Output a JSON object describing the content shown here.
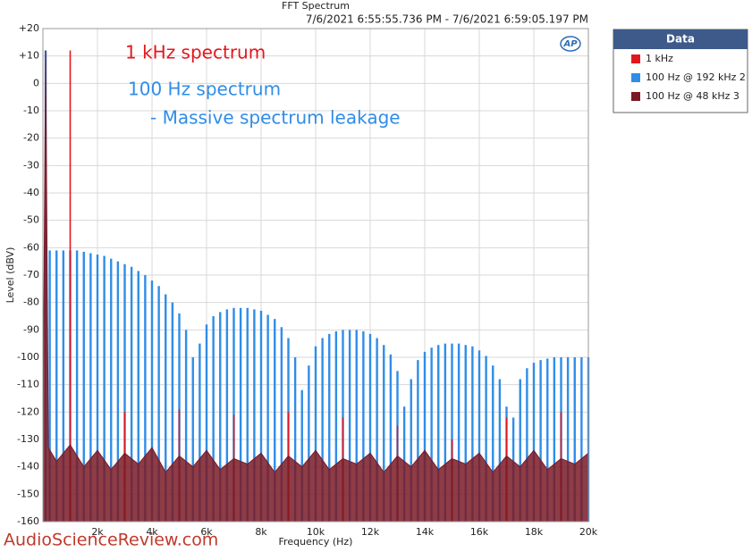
{
  "chart_data": {
    "type": "spectrum",
    "title": "FFT Spectrum",
    "subtitle": "7/6/2021 6:55:55.736 PM - 7/6/2021 6:59:05.197 PM",
    "logo": "AP",
    "x_label": "Frequency (Hz)",
    "y_label": "Level (dBV)",
    "annotations": [
      {
        "text": "1 kHz spectrum",
        "color": "#e3161d"
      },
      {
        "text": "100 Hz spectrum",
        "color": "#2f8de8"
      },
      {
        "text": "- Massive spectrum leakage",
        "color": "#2f8de8"
      }
    ],
    "watermark": "AudioScienceReview.com",
    "legend_title": "Data",
    "legend": "right",
    "grid": true,
    "xlim": [
      0,
      20000
    ],
    "xticks": [
      {
        "value": 2000,
        "label": "2k"
      },
      {
        "value": 4000,
        "label": "4k"
      },
      {
        "value": 6000,
        "label": "6k"
      },
      {
        "value": 8000,
        "label": "8k"
      },
      {
        "value": 10000,
        "label": "10k"
      },
      {
        "value": 12000,
        "label": "12k"
      },
      {
        "value": 14000,
        "label": "14k"
      },
      {
        "value": 16000,
        "label": "16k"
      },
      {
        "value": 18000,
        "label": "18k"
      },
      {
        "value": 20000,
        "label": "20k"
      }
    ],
    "ylim": [
      -160,
      20
    ],
    "yticks": [
      {
        "value": 20,
        "label": "+20"
      },
      {
        "value": 10,
        "label": "+10"
      },
      0,
      -10,
      -20,
      -30,
      -40,
      -50,
      -60,
      -70,
      -80,
      -90,
      -100,
      -110,
      -120,
      -130,
      -140,
      -150,
      -160
    ],
    "series": [
      {
        "name": "100 Hz @ 192 kHz 2",
        "color": "#2f8de8",
        "style": "stem",
        "x": [
          100,
          250,
          500,
          750,
          1000,
          1250,
          1500,
          1750,
          2000,
          2250,
          2500,
          2750,
          3000,
          3250,
          3500,
          3750,
          4000,
          4250,
          4500,
          4750,
          5000,
          5250,
          5500,
          5750,
          6000,
          6250,
          6500,
          6750,
          7000,
          7250,
          7500,
          7750,
          8000,
          8250,
          8500,
          8750,
          9000,
          9250,
          9500,
          9750,
          10000,
          10250,
          10500,
          10750,
          11000,
          11250,
          11500,
          11750,
          12000,
          12250,
          12500,
          12750,
          13000,
          13250,
          13500,
          13750,
          14000,
          14250,
          14500,
          14750,
          15000,
          15250,
          15500,
          15750,
          16000,
          16250,
          16500,
          16750,
          17000,
          17250,
          17500,
          17750,
          18000,
          18250,
          18500,
          18750,
          19000,
          19250,
          19500,
          19750,
          20000
        ],
        "values": [
          12,
          -61,
          -61,
          -61,
          -61,
          -61,
          -61.5,
          -62,
          -62.5,
          -63,
          -64,
          -65,
          -66,
          -67,
          -68.5,
          -70,
          -72,
          -74,
          -77,
          -80,
          -84,
          -90,
          -100,
          -95,
          -88,
          -85,
          -83.5,
          -82.5,
          -82,
          -82,
          -82,
          -82.5,
          -83,
          -84.5,
          -86,
          -89,
          -93,
          -100,
          -112,
          -103,
          -96,
          -93,
          -91.5,
          -90.5,
          -90,
          -90,
          -90,
          -90.5,
          -91.5,
          -93,
          -95.5,
          -99,
          -105,
          -118,
          -108,
          -101,
          -98,
          -96.5,
          -95.5,
          -95,
          -95,
          -95,
          -95.5,
          -96,
          -97.5,
          -99.5,
          -103,
          -108,
          -118,
          -122,
          -108,
          -104,
          -102,
          -101,
          -100.5,
          -100,
          -100,
          -100,
          -100,
          -100,
          -100
        ]
      },
      {
        "name": "1 kHz",
        "color": "#e3161d",
        "style": "stem",
        "x": [
          1000,
          3000,
          5000,
          7000,
          9000,
          11000,
          13000,
          15000,
          17000,
          19000
        ],
        "values": [
          12,
          -120,
          -119,
          -121,
          -120,
          -122,
          -125,
          -130,
          -122,
          -120
        ]
      },
      {
        "name": "100 Hz @ 48 kHz 3",
        "color": "#7a1a24",
        "style": "area",
        "x": [
          0,
          100,
          200,
          500,
          1000,
          1500,
          2000,
          2500,
          3000,
          3500,
          4000,
          4500,
          5000,
          5500,
          6000,
          6500,
          7000,
          7500,
          8000,
          8500,
          9000,
          9500,
          10000,
          10500,
          11000,
          11500,
          12000,
          12500,
          13000,
          13500,
          14000,
          14500,
          15000,
          15500,
          16000,
          16500,
          17000,
          17500,
          18000,
          18500,
          19000,
          19500,
          20000
        ],
        "values": [
          -130,
          12,
          -133,
          -138,
          -132,
          -140,
          -134,
          -141,
          -135,
          -139,
          -133,
          -142,
          -136,
          -140,
          -134,
          -141,
          -137,
          -139,
          -135,
          -142,
          -136,
          -140,
          -134,
          -141,
          -137,
          -139,
          -135,
          -142,
          -136,
          -140,
          -134,
          -141,
          -137,
          -139,
          -135,
          -142,
          -136,
          -140,
          -134,
          -141,
          -137,
          -139,
          -135
        ]
      }
    ]
  }
}
